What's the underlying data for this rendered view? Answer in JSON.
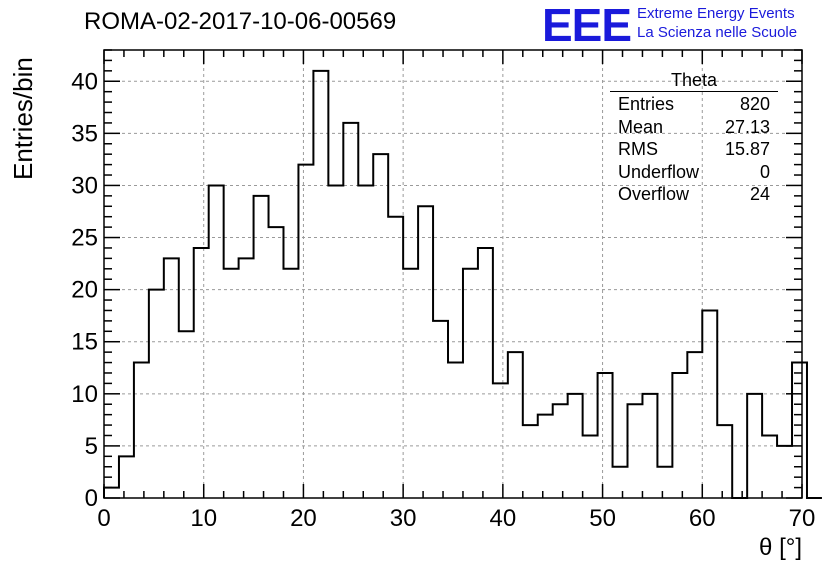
{
  "header": {
    "title": "ROMA-02-2017-10-06-00569",
    "logo": "EEE",
    "logo_line1": "Extreme Energy Events",
    "logo_line2": "La Scienza nelle Scuole"
  },
  "stats": {
    "title": "Theta",
    "rows": [
      {
        "label": "Entries",
        "value": "820"
      },
      {
        "label": "Mean",
        "value": "27.13"
      },
      {
        "label": "RMS",
        "value": "15.87"
      },
      {
        "label": "Underflow",
        "value": "0"
      },
      {
        "label": "Overflow",
        "value": "24"
      }
    ]
  },
  "chart_data": {
    "type": "histogram",
    "xlabel": "θ [°]",
    "ylabel": "Entries/bin",
    "xlim": [
      0,
      70
    ],
    "ylim": [
      0,
      43
    ],
    "x_ticks": [
      0,
      10,
      20,
      30,
      40,
      50,
      60,
      70
    ],
    "y_ticks": [
      0,
      5,
      10,
      15,
      20,
      25,
      30,
      35,
      40
    ],
    "grid": true,
    "bin_width": 1.5,
    "bin_start": 0,
    "values": [
      1,
      4,
      13,
      20,
      23,
      16,
      24,
      30,
      22,
      23,
      29,
      26,
      22,
      32,
      41,
      30,
      36,
      30,
      33,
      27,
      22,
      28,
      17,
      13,
      22,
      24,
      11,
      14,
      7,
      8,
      9,
      10,
      6,
      12,
      3,
      9,
      10,
      3,
      12,
      14,
      18,
      7,
      0,
      10,
      6,
      5,
      13,
      0
    ]
  }
}
